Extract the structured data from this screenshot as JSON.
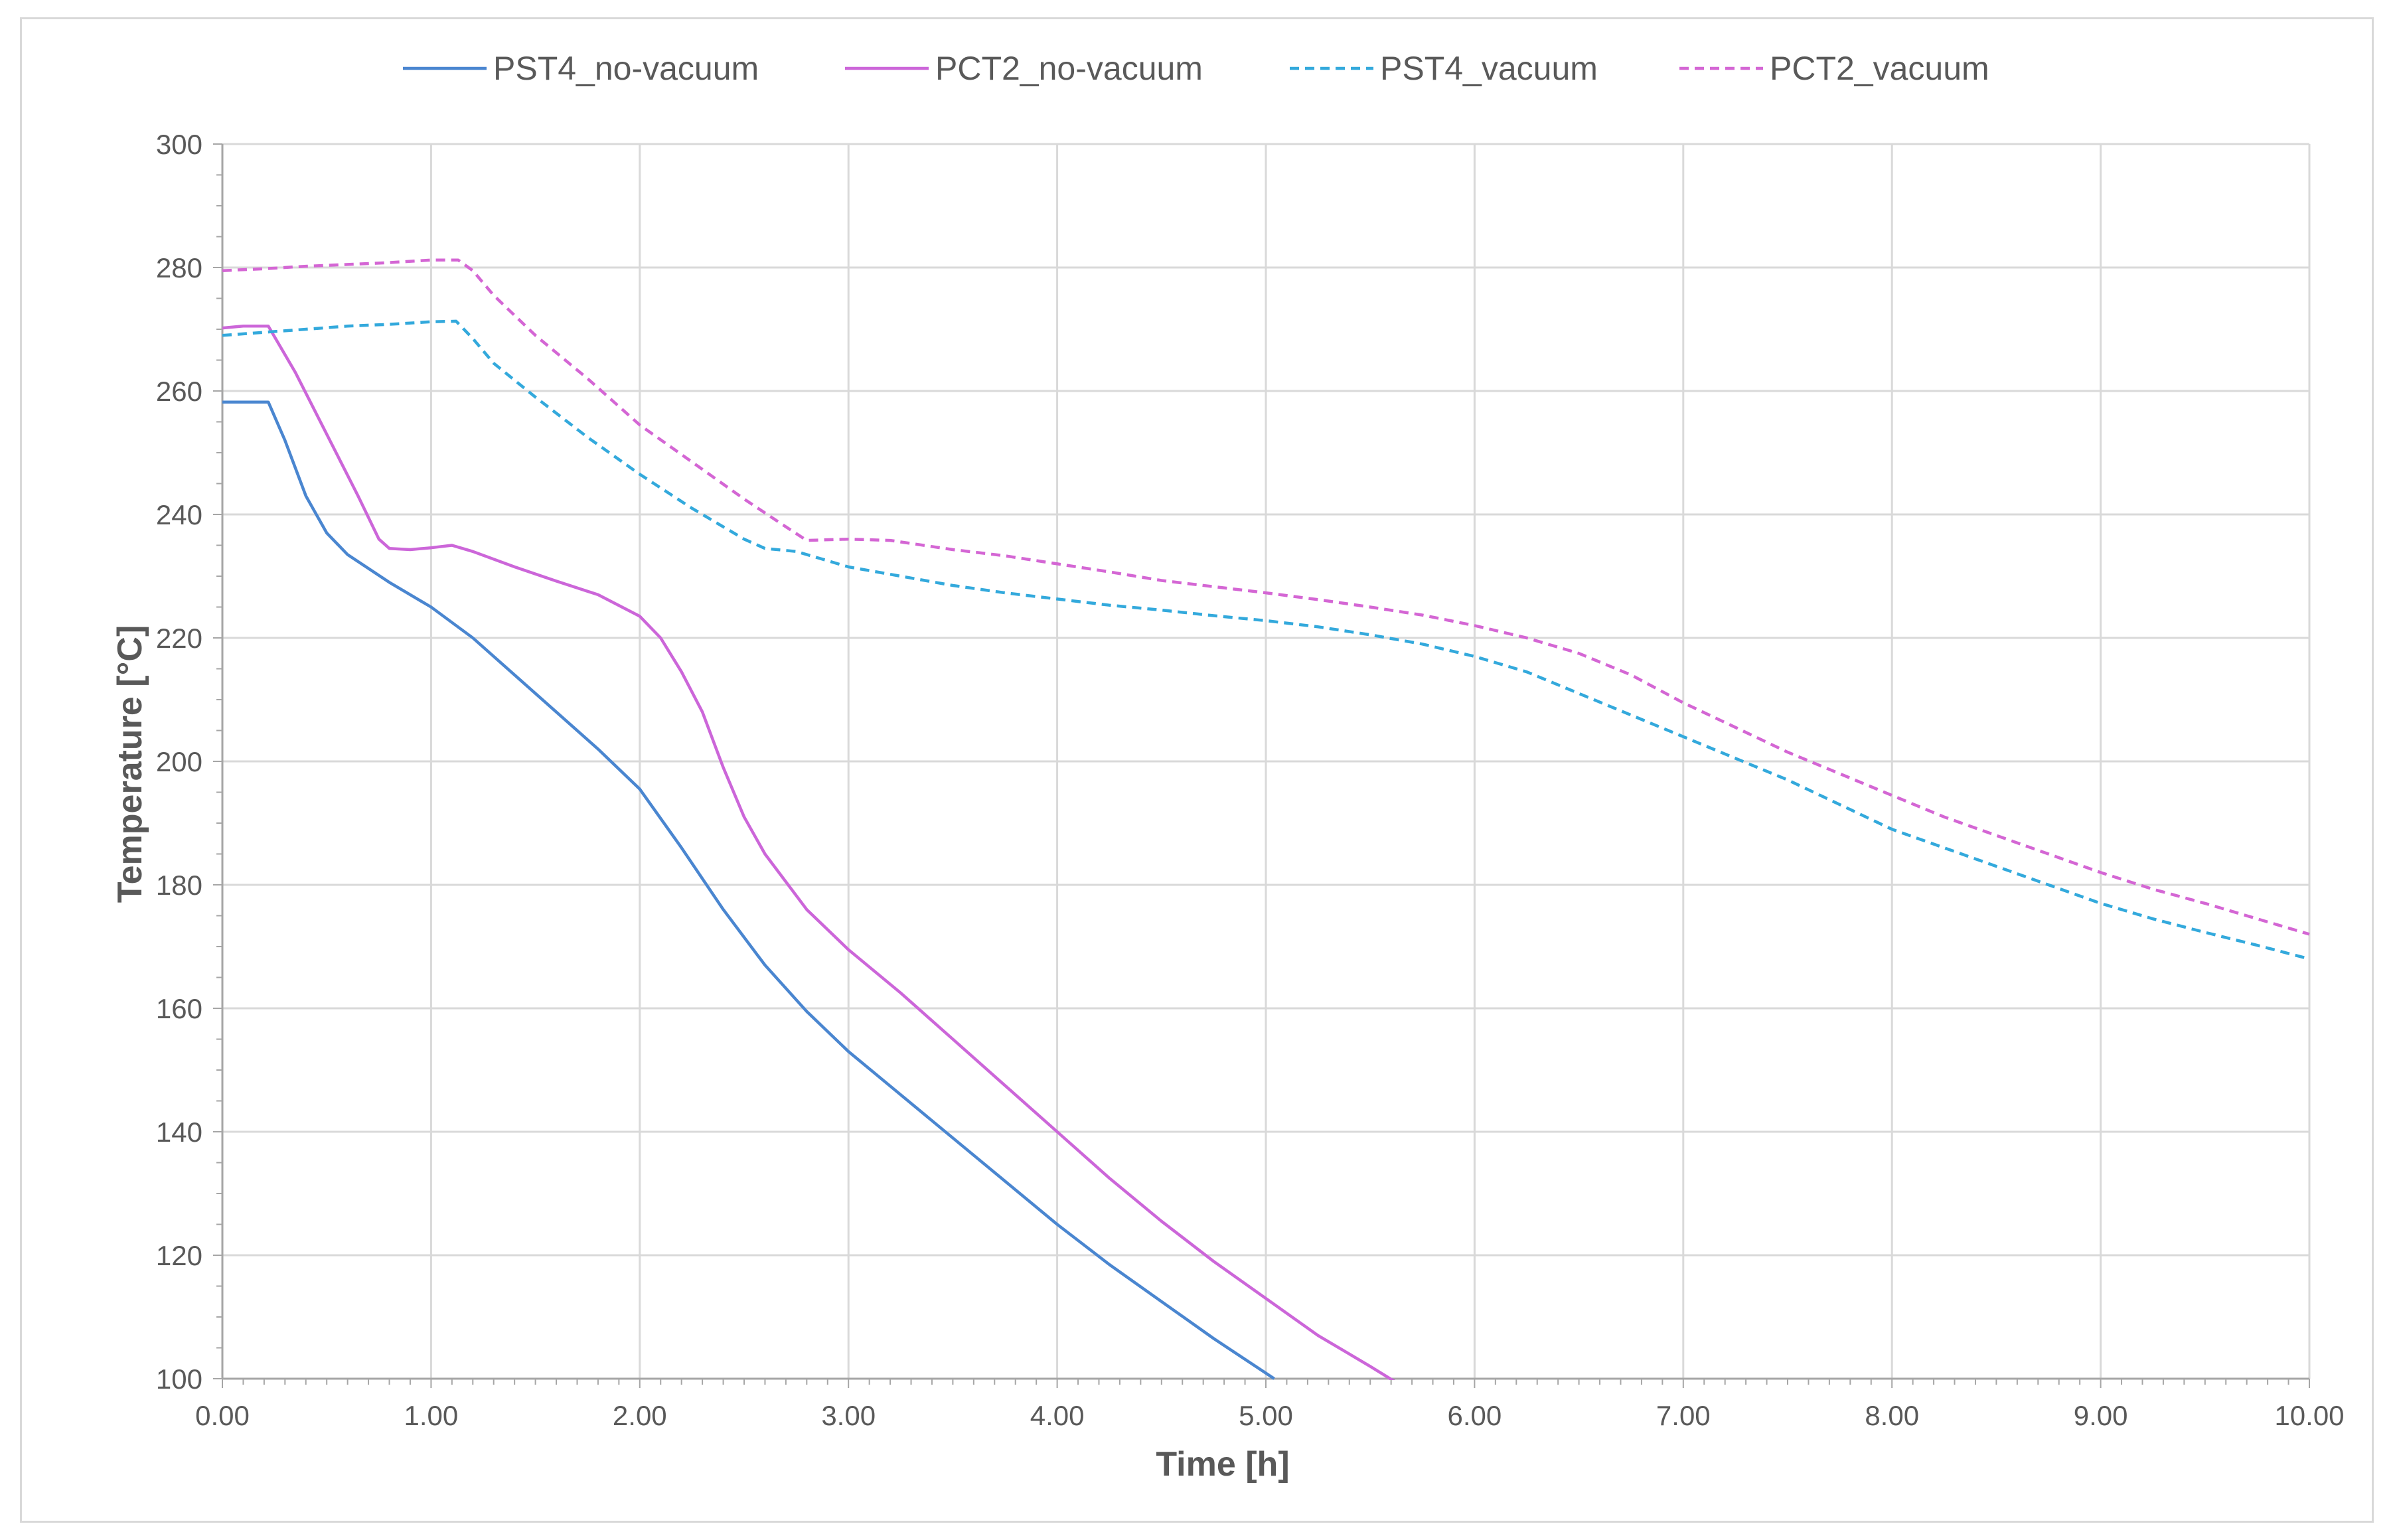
{
  "chart_data": {
    "type": "line",
    "title": "",
    "xlabel": "Time [h]",
    "ylabel": "Temperature [°C]",
    "xlim": [
      0,
      10
    ],
    "ylim": [
      100,
      300
    ],
    "x_ticks": [
      "0.00",
      "1.00",
      "2.00",
      "3.00",
      "4.00",
      "5.00",
      "6.00",
      "7.00",
      "8.00",
      "9.00",
      "10.00"
    ],
    "y_ticks": [
      "100",
      "120",
      "140",
      "160",
      "180",
      "200",
      "220",
      "240",
      "260",
      "280",
      "300"
    ],
    "grid": true,
    "legend_position": "top",
    "series": [
      {
        "name": "PST4_no-vacuum",
        "color": "#4a86d0",
        "dash": "solid",
        "points": [
          [
            0,
            258.2
          ],
          [
            0.22,
            258.2
          ],
          [
            0.3,
            252
          ],
          [
            0.4,
            243
          ],
          [
            0.5,
            237
          ],
          [
            0.6,
            233.5
          ],
          [
            0.8,
            229
          ],
          [
            1.0,
            225
          ],
          [
            1.2,
            220
          ],
          [
            1.4,
            214
          ],
          [
            1.6,
            208
          ],
          [
            1.8,
            202
          ],
          [
            2.0,
            195.5
          ],
          [
            2.2,
            186
          ],
          [
            2.4,
            176
          ],
          [
            2.6,
            167
          ],
          [
            2.8,
            159.5
          ],
          [
            3.0,
            153
          ],
          [
            3.25,
            146
          ],
          [
            3.5,
            139
          ],
          [
            3.75,
            132
          ],
          [
            4.0,
            125
          ],
          [
            4.25,
            118.5
          ],
          [
            4.5,
            112.5
          ],
          [
            4.75,
            106.5
          ],
          [
            5.04,
            100
          ]
        ]
      },
      {
        "name": "PCT2_no-vacuum",
        "color": "#cc66d9",
        "dash": "solid",
        "points": [
          [
            0,
            270.2
          ],
          [
            0.1,
            270.5
          ],
          [
            0.22,
            270.5
          ],
          [
            0.35,
            263
          ],
          [
            0.5,
            253
          ],
          [
            0.65,
            243
          ],
          [
            0.75,
            236
          ],
          [
            0.8,
            234.5
          ],
          [
            0.9,
            234.3
          ],
          [
            1.0,
            234.6
          ],
          [
            1.1,
            235
          ],
          [
            1.2,
            234
          ],
          [
            1.4,
            231.5
          ],
          [
            1.6,
            229.2
          ],
          [
            1.8,
            227
          ],
          [
            2.0,
            223.5
          ],
          [
            2.1,
            220
          ],
          [
            2.2,
            214.5
          ],
          [
            2.3,
            208
          ],
          [
            2.4,
            199
          ],
          [
            2.5,
            191
          ],
          [
            2.6,
            185
          ],
          [
            2.8,
            176
          ],
          [
            3.0,
            169.5
          ],
          [
            3.25,
            162.5
          ],
          [
            3.5,
            155
          ],
          [
            3.75,
            147.5
          ],
          [
            4.0,
            140
          ],
          [
            4.25,
            132.5
          ],
          [
            4.5,
            125.5
          ],
          [
            4.75,
            119
          ],
          [
            5.0,
            113
          ],
          [
            5.25,
            107
          ],
          [
            5.5,
            102
          ],
          [
            5.62,
            99.5
          ]
        ]
      },
      {
        "name": "PST4_vacuum",
        "color": "#33a9dc",
        "dash": "dashed",
        "points": [
          [
            0,
            269
          ],
          [
            0.2,
            269.5
          ],
          [
            0.4,
            270
          ],
          [
            0.6,
            270.5
          ],
          [
            0.8,
            270.8
          ],
          [
            1.0,
            271.2
          ],
          [
            1.12,
            271.3
          ],
          [
            1.2,
            268.5
          ],
          [
            1.3,
            264.5
          ],
          [
            1.5,
            259
          ],
          [
            1.75,
            252.5
          ],
          [
            2.0,
            246.5
          ],
          [
            2.25,
            241
          ],
          [
            2.5,
            236
          ],
          [
            2.6,
            234.5
          ],
          [
            2.75,
            234
          ],
          [
            3.0,
            231.5
          ],
          [
            3.25,
            230
          ],
          [
            3.5,
            228.5
          ],
          [
            3.75,
            227.3
          ],
          [
            4.0,
            226.3
          ],
          [
            4.25,
            225.3
          ],
          [
            4.5,
            224.5
          ],
          [
            4.75,
            223.6
          ],
          [
            5.0,
            222.8
          ],
          [
            5.25,
            221.8
          ],
          [
            5.5,
            220.5
          ],
          [
            5.75,
            219
          ],
          [
            6.0,
            217
          ],
          [
            6.25,
            214.5
          ],
          [
            6.5,
            211
          ],
          [
            6.75,
            207.5
          ],
          [
            7.0,
            204
          ],
          [
            7.25,
            200.5
          ],
          [
            7.5,
            197
          ],
          [
            7.75,
            193
          ],
          [
            8.0,
            189
          ],
          [
            8.25,
            186
          ],
          [
            8.5,
            183
          ],
          [
            8.75,
            180
          ],
          [
            9.0,
            177
          ],
          [
            9.25,
            174.5
          ],
          [
            9.5,
            172.3
          ],
          [
            9.75,
            170.2
          ],
          [
            10.0,
            168
          ]
        ]
      },
      {
        "name": "PCT2_vacuum",
        "color": "#d466d4",
        "dash": "dashed",
        "points": [
          [
            0,
            279.5
          ],
          [
            0.2,
            279.8
          ],
          [
            0.4,
            280.2
          ],
          [
            0.6,
            280.5
          ],
          [
            0.8,
            280.8
          ],
          [
            1.0,
            281.2
          ],
          [
            1.13,
            281.2
          ],
          [
            1.2,
            279.5
          ],
          [
            1.3,
            275.5
          ],
          [
            1.5,
            269
          ],
          [
            1.75,
            262
          ],
          [
            2.0,
            254.5
          ],
          [
            2.25,
            248.5
          ],
          [
            2.5,
            242.5
          ],
          [
            2.7,
            238
          ],
          [
            2.8,
            235.8
          ],
          [
            3.0,
            236
          ],
          [
            3.2,
            235.8
          ],
          [
            3.5,
            234.3
          ],
          [
            3.75,
            233.3
          ],
          [
            4.0,
            232
          ],
          [
            4.25,
            230.7
          ],
          [
            4.5,
            229.3
          ],
          [
            4.75,
            228.3
          ],
          [
            5.0,
            227.3
          ],
          [
            5.25,
            226.2
          ],
          [
            5.5,
            225
          ],
          [
            5.75,
            223.7
          ],
          [
            6.0,
            222
          ],
          [
            6.25,
            220
          ],
          [
            6.5,
            217.5
          ],
          [
            6.75,
            214
          ],
          [
            7.0,
            209.5
          ],
          [
            7.25,
            205.5
          ],
          [
            7.5,
            201.5
          ],
          [
            7.75,
            198
          ],
          [
            8.0,
            194.5
          ],
          [
            8.25,
            191
          ],
          [
            8.5,
            188
          ],
          [
            8.75,
            185
          ],
          [
            9.0,
            182
          ],
          [
            9.25,
            179.3
          ],
          [
            9.5,
            177
          ],
          [
            9.75,
            174.5
          ],
          [
            10.0,
            172
          ]
        ]
      }
    ]
  }
}
